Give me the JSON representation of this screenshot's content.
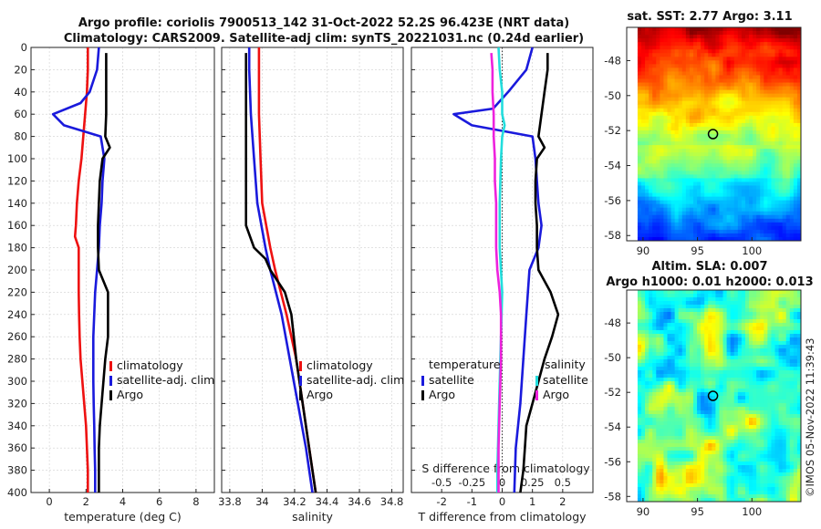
{
  "header": {
    "line1": "Argo profile: coriolis 7900513_142 31-Oct-2022 52.2S 96.423E (NRT data)",
    "line2": "Climatology: CARS2009. Satellite-adj clim: synTS_20221031.nc (0.24d earlier)"
  },
  "credit": "©IMOS 05-Nov-2022 11:39:43",
  "colors": {
    "climatology": "#ee1111",
    "satellite": "#1a1adc",
    "argo": "#000000",
    "salinity_diff": "#22dddd",
    "satellite_s": "#ee22dd"
  },
  "chart_data": [
    {
      "type": "line",
      "name": "temperature",
      "xlabel": "temperature (deg C)",
      "xlim": [
        -1,
        9
      ],
      "ylim": [
        400,
        0
      ],
      "xticks": [
        "0",
        "2",
        "4",
        "6",
        "8"
      ],
      "xtick_values": [
        0,
        2,
        4,
        6,
        8
      ],
      "yticks": [
        "0",
        "20",
        "40",
        "60",
        "80",
        "100",
        "120",
        "140",
        "160",
        "180",
        "200",
        "220",
        "240",
        "260",
        "280",
        "300",
        "320",
        "340",
        "360",
        "380",
        "400"
      ],
      "ytick_values": [
        0,
        20,
        40,
        60,
        80,
        100,
        120,
        140,
        160,
        180,
        200,
        220,
        240,
        260,
        280,
        300,
        320,
        340,
        360,
        380,
        400
      ],
      "legend": [
        "climatology",
        "satellite-adj. clim",
        "Argo"
      ],
      "series": [
        {
          "name": "climatology",
          "depth": [
            0,
            10,
            20,
            40,
            60,
            80,
            100,
            120,
            140,
            160,
            170,
            180,
            200,
            220,
            240,
            260,
            280,
            300,
            320,
            340,
            360,
            380,
            400
          ],
          "values": [
            2.1,
            2.1,
            2.1,
            2.05,
            1.95,
            1.85,
            1.75,
            1.6,
            1.5,
            1.45,
            1.4,
            1.6,
            1.6,
            1.6,
            1.62,
            1.65,
            1.7,
            1.8,
            1.9,
            2.0,
            2.05,
            2.1,
            2.1
          ]
        },
        {
          "name": "satellite-adj. clim",
          "depth": [
            0,
            20,
            40,
            50,
            60,
            70,
            80,
            100,
            120,
            140,
            160,
            180,
            200,
            220,
            240,
            260,
            280,
            300,
            320,
            340,
            360,
            380,
            400
          ],
          "values": [
            2.7,
            2.6,
            2.2,
            1.7,
            0.2,
            0.8,
            2.8,
            3.0,
            2.9,
            2.85,
            2.75,
            2.7,
            2.6,
            2.5,
            2.45,
            2.4,
            2.4,
            2.4,
            2.42,
            2.45,
            2.47,
            2.5,
            2.5
          ]
        },
        {
          "name": "Argo",
          "depth": [
            5,
            20,
            40,
            60,
            80,
            90,
            100,
            120,
            140,
            160,
            180,
            200,
            220,
            240,
            260,
            280,
            300,
            320,
            340,
            360,
            380,
            400
          ],
          "values": [
            3.1,
            3.1,
            3.1,
            3.1,
            3.05,
            3.3,
            2.9,
            2.75,
            2.7,
            2.65,
            2.65,
            2.7,
            3.2,
            3.2,
            3.2,
            3.05,
            2.95,
            2.85,
            2.75,
            2.7,
            2.7,
            2.7
          ]
        }
      ]
    },
    {
      "type": "line",
      "name": "salinity",
      "xlabel": "salinity",
      "xlim": [
        33.75,
        34.87
      ],
      "ylim": [
        400,
        0
      ],
      "xticks": [
        "33.8",
        "34",
        "34.2",
        "34.4",
        "34.6",
        "34.8"
      ],
      "xtick_values": [
        33.8,
        34.0,
        34.2,
        34.4,
        34.6,
        34.8
      ],
      "legend": [
        "climatology",
        "satellite-adj. clim",
        "Argo"
      ],
      "series": [
        {
          "name": "climatology",
          "depth": [
            0,
            20,
            60,
            100,
            140,
            180,
            200,
            240,
            280,
            320,
            360,
            400
          ],
          "values": [
            33.98,
            33.98,
            33.98,
            33.99,
            34.0,
            34.05,
            34.08,
            34.15,
            34.21,
            34.25,
            34.29,
            34.33
          ]
        },
        {
          "name": "satellite-adj. clim",
          "depth": [
            0,
            20,
            60,
            100,
            140,
            180,
            200,
            240,
            280,
            320,
            360,
            400
          ],
          "values": [
            33.92,
            33.92,
            33.93,
            33.95,
            33.97,
            34.02,
            34.05,
            34.12,
            34.17,
            34.22,
            34.27,
            34.31
          ]
        },
        {
          "name": "Argo",
          "depth": [
            5,
            20,
            80,
            120,
            160,
            180,
            190,
            200,
            220,
            240,
            280,
            320,
            360,
            400
          ],
          "values": [
            33.9,
            33.9,
            33.9,
            33.9,
            33.9,
            33.95,
            34.02,
            34.05,
            34.14,
            34.18,
            34.21,
            34.25,
            34.29,
            34.33
          ]
        }
      ]
    },
    {
      "type": "line",
      "name": "difference",
      "xlabel": "T difference from climatology",
      "xlabel_top": "S difference from climatology",
      "xlim": [
        -3,
        3
      ],
      "ylim": [
        400,
        0
      ],
      "xticks": [
        "-2",
        "-1",
        "0",
        "1",
        "2"
      ],
      "xtick_values": [
        -2,
        -1,
        0,
        1,
        2
      ],
      "xticks_s": [
        "-0.5",
        "-0.25",
        "0",
        "0.25",
        "0.5"
      ],
      "xtick_values_s": [
        -0.5,
        -0.25,
        0,
        0.25,
        0.5
      ],
      "legend_left_title": "temperature",
      "legend_right_title": "salinity",
      "legend": [
        "satellite",
        "Argo",
        "satellite",
        "Argo"
      ],
      "series": [
        {
          "name": "T satellite",
          "depth": [
            0,
            20,
            40,
            55,
            60,
            70,
            80,
            100,
            120,
            140,
            160,
            180,
            200,
            240,
            280,
            320,
            360,
            400
          ],
          "values": [
            1.0,
            0.8,
            0.2,
            -0.3,
            -1.6,
            -1.0,
            1.0,
            1.1,
            1.15,
            1.2,
            1.3,
            1.2,
            0.9,
            0.8,
            0.7,
            0.6,
            0.45,
            0.4
          ]
        },
        {
          "name": "T Argo",
          "depth": [
            5,
            20,
            40,
            60,
            80,
            90,
            100,
            120,
            140,
            160,
            180,
            200,
            220,
            240,
            260,
            280,
            300,
            320,
            340,
            360,
            380,
            400
          ],
          "values": [
            1.5,
            1.5,
            1.4,
            1.3,
            1.2,
            1.4,
            1.15,
            1.1,
            1.1,
            1.15,
            1.15,
            1.2,
            1.6,
            1.85,
            1.65,
            1.4,
            1.2,
            1.0,
            0.8,
            0.75,
            0.7,
            0.6
          ]
        },
        {
          "name": "S satellite",
          "depth": [
            0,
            20,
            40,
            60,
            70,
            80,
            100,
            140,
            180,
            220,
            260,
            300,
            340,
            380,
            400
          ],
          "values": [
            -0.03,
            -0.02,
            0.0,
            0.0,
            0.02,
            0.0,
            -0.01,
            -0.02,
            -0.02,
            0.0,
            -0.01,
            -0.02,
            -0.03,
            -0.04,
            -0.04
          ]
        },
        {
          "name": "S Argo",
          "depth": [
            5,
            20,
            40,
            60,
            80,
            100,
            120,
            140,
            160,
            180,
            200,
            220,
            240,
            280,
            320,
            360,
            400
          ],
          "values": [
            -0.09,
            -0.08,
            -0.08,
            -0.07,
            -0.07,
            -0.06,
            -0.06,
            -0.05,
            -0.05,
            -0.05,
            -0.04,
            -0.02,
            -0.01,
            -0.01,
            -0.02,
            -0.03,
            -0.03
          ]
        }
      ]
    },
    {
      "type": "heatmap",
      "name": "sst_map",
      "title": "sat. SST: 2.77 Argo: 3.11",
      "xticks": [
        "90",
        "95",
        "100"
      ],
      "xtick_values": [
        90,
        95,
        100
      ],
      "yticks": [
        "-48",
        "-50",
        "-52",
        "-54",
        "-56",
        "-58"
      ],
      "ytick_values": [
        -48,
        -50,
        -52,
        -54,
        -56,
        -58
      ],
      "xlim": [
        88.5,
        104.5
      ],
      "ylim": [
        -58.3,
        -46.1
      ],
      "marker": {
        "lon": 96.423,
        "lat": -52.2
      }
    },
    {
      "type": "heatmap",
      "name": "sla_map",
      "title_line1": "Altim. SLA: 0.007",
      "title_line2": "Argo h1000: 0.01 h2000: 0.013",
      "xticks": [
        "90",
        "95",
        "100"
      ],
      "xtick_values": [
        90,
        95,
        100
      ],
      "yticks": [
        "-48",
        "-50",
        "-52",
        "-54",
        "-56",
        "-58"
      ],
      "ytick_values": [
        -48,
        -50,
        -52,
        -54,
        -56,
        -58
      ],
      "xlim": [
        88.5,
        104.5
      ],
      "ylim": [
        -58.3,
        -46.1
      ],
      "marker": {
        "lon": 96.423,
        "lat": -52.2
      }
    }
  ]
}
